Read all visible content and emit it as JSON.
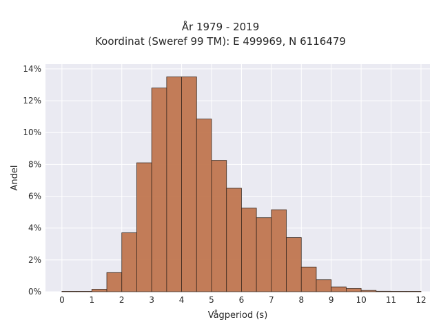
{
  "chart_data": {
    "type": "bar",
    "title_lines": [
      "År 1979 - 2019",
      "Koordinat (Sweref 99 TM): E 499969, N 6116479"
    ],
    "xlabel": "Vågperiod (s)",
    "ylabel": "Andel",
    "xlim": [
      -0.55,
      12.3
    ],
    "ylim": [
      0,
      14.3
    ],
    "x_ticks": [
      0,
      1,
      2,
      3,
      4,
      5,
      6,
      7,
      8,
      9,
      10,
      11,
      12
    ],
    "x_tick_labels": [
      "0",
      "1",
      "2",
      "3",
      "4",
      "5",
      "6",
      "7",
      "8",
      "9",
      "10",
      "11",
      "12"
    ],
    "y_ticks": [
      0,
      2,
      4,
      6,
      8,
      10,
      12,
      14
    ],
    "y_tick_labels": [
      "0%",
      "2%",
      "4%",
      "6%",
      "8%",
      "10%",
      "12%",
      "14%"
    ],
    "bin_width": 0.5,
    "bin_starts": [
      0,
      0.5,
      1,
      1.5,
      2,
      2.5,
      3,
      3.5,
      4,
      4.5,
      5,
      5.5,
      6,
      6.5,
      7,
      7.5,
      8,
      8.5,
      9,
      9.5,
      10,
      10.5,
      11,
      11.5
    ],
    "values": [
      0.02,
      0.0,
      0.15,
      1.2,
      3.7,
      8.1,
      12.8,
      13.5,
      13.5,
      10.85,
      8.25,
      6.5,
      5.25,
      4.65,
      5.15,
      3.4,
      1.55,
      0.75,
      0.3,
      0.2,
      0.08,
      0.03,
      0.01,
      0.0
    ],
    "unit": "%",
    "grid": true,
    "colors": {
      "plot_bg": "#eaeaf2",
      "grid": "#ffffff",
      "bar_fill": "#c0764f",
      "bar_edge": "#3b2a20"
    }
  }
}
